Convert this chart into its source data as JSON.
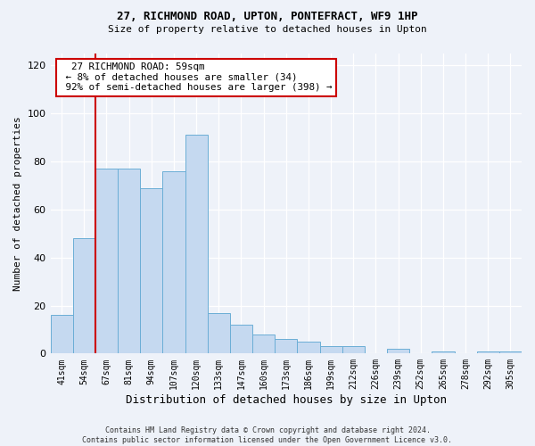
{
  "title1": "27, RICHMOND ROAD, UPTON, PONTEFRACT, WF9 1HP",
  "title2": "Size of property relative to detached houses in Upton",
  "xlabel": "Distribution of detached houses by size in Upton",
  "ylabel": "Number of detached properties",
  "categories": [
    "41sqm",
    "54sqm",
    "67sqm",
    "81sqm",
    "94sqm",
    "107sqm",
    "120sqm",
    "133sqm",
    "147sqm",
    "160sqm",
    "173sqm",
    "186sqm",
    "199sqm",
    "212sqm",
    "226sqm",
    "239sqm",
    "252sqm",
    "265sqm",
    "278sqm",
    "292sqm",
    "305sqm"
  ],
  "bar_values": [
    16,
    48,
    77,
    77,
    69,
    76,
    91,
    17,
    12,
    8,
    6,
    5,
    3,
    3,
    0,
    2,
    0,
    1,
    0,
    1,
    1
  ],
  "bar_color": "#c5d9f0",
  "bar_edge_color": "#6baed6",
  "annotation_box_color": "#ffffff",
  "annotation_box_edge": "#cc0000",
  "vline_color": "#cc0000",
  "vline_x": 1.5,
  "annotation_text": "  27 RICHMOND ROAD: 59sqm  \n ← 8% of detached houses are smaller (34) \n 92% of semi-detached houses are larger (398) →",
  "footer1": "Contains HM Land Registry data © Crown copyright and database right 2024.",
  "footer2": "Contains public sector information licensed under the Open Government Licence v3.0.",
  "ylim": [
    0,
    125
  ],
  "yticks": [
    0,
    20,
    40,
    60,
    80,
    100,
    120
  ],
  "background_color": "#eef2f9"
}
